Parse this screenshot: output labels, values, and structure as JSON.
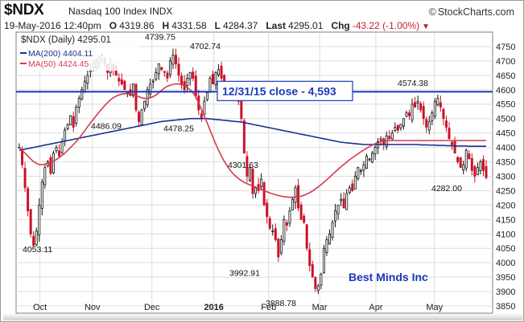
{
  "header": {
    "title": "$NDX",
    "subtitle": "Nasdaq 100 Index INDX",
    "brand": "StockCharts.com",
    "date": "19-May-2016 12:40pm",
    "open_label": "O",
    "open": "4319.86",
    "high_label": "H",
    "high": "4331.58",
    "low_label": "L",
    "low": "4284.37",
    "last_label": "Last",
    "last": "4295.01",
    "chg_label": "Chg",
    "chg": "-43.22 (-1.00%)"
  },
  "legend": {
    "main": "$NDX (Daily) 4295.01",
    "ma200": "MA(200) 4404.11",
    "ma50": "MA(50) 4424.45"
  },
  "colors": {
    "up": "#111111",
    "down": "#cc1126",
    "ma200": "#1a2f8f",
    "ma50": "#d6394c",
    "hline": "#1a39b8",
    "watermark": "#1a39b8",
    "grid": "#dcdcdc"
  },
  "chart_data": {
    "type": "candlestick",
    "title": "$NDX (Daily) 4295.01",
    "ylim": [
      3825,
      4800
    ],
    "yticks": [
      3850,
      3900,
      3950,
      4000,
      4050,
      4100,
      4150,
      4200,
      4250,
      4300,
      4350,
      4400,
      4450,
      4500,
      4550,
      4600,
      4650,
      4700,
      4750
    ],
    "x_labels": [
      {
        "label": "Oct",
        "x": 0.05
      },
      {
        "label": "Nov",
        "x": 0.16
      },
      {
        "label": "Dec",
        "x": 0.285
      },
      {
        "label": "2016",
        "x": 0.415
      },
      {
        "label": "Feb",
        "x": 0.53
      },
      {
        "label": "Mar",
        "x": 0.637
      },
      {
        "label": "Apr",
        "x": 0.755
      },
      {
        "label": "May",
        "x": 0.878
      }
    ],
    "reference_line": {
      "value": 4593,
      "label": "12/31/15 close - 4,593"
    },
    "annotations": [
      {
        "text": "4053.11",
        "value": 4053.11
      },
      {
        "text": "4486.09",
        "value": 4486.09
      },
      {
        "text": "4739.75",
        "value": 4739.75
      },
      {
        "text": "4478.25",
        "value": 4478.25
      },
      {
        "text": "4702.74",
        "value": 4702.74
      },
      {
        "text": "4301.63",
        "value": 4301.63
      },
      {
        "text": "3992.91",
        "value": 3992.91
      },
      {
        "text": "3888.78",
        "value": 3888.78
      },
      {
        "text": "4574.38",
        "value": 4574.38
      },
      {
        "text": "4282.00",
        "value": 4282.0
      }
    ],
    "closes": [
      4400,
      4340,
      4260,
      4180,
      4100,
      4060,
      4110,
      4200,
      4280,
      4330,
      4350,
      4310,
      4380,
      4400,
      4370,
      4420,
      4460,
      4480,
      4510,
      4470,
      4540,
      4570,
      4600,
      4630,
      4650,
      4670,
      4690,
      4700,
      4710,
      4720,
      4690,
      4660,
      4690,
      4670,
      4650,
      4630,
      4620,
      4600,
      4590,
      4580,
      4620,
      4530,
      4490,
      4530,
      4560,
      4600,
      4620,
      4630,
      4660,
      4690,
      4670,
      4660,
      4640,
      4700,
      4720,
      4690,
      4650,
      4620,
      4600,
      4640,
      4660,
      4640,
      4580,
      4530,
      4500,
      4560,
      4590,
      4640,
      4620,
      4660,
      4670,
      4640,
      4610,
      4590,
      4610,
      4600,
      4570,
      4560,
      4500,
      4380,
      4300,
      4330,
      4240,
      4260,
      4250,
      4290,
      4200,
      4160,
      4120,
      4110,
      4080,
      4020,
      4080,
      4150,
      4130,
      4180,
      4220,
      4260,
      4190,
      4150,
      4140,
      4050,
      3990,
      3950,
      3910,
      3920,
      3960,
      4050,
      4080,
      4100,
      4140,
      4180,
      4200,
      4220,
      4190,
      4240,
      4260,
      4250,
      4300,
      4330,
      4320,
      4340,
      4370,
      4360,
      4380,
      4400,
      4420,
      4430,
      4410,
      4440,
      4430,
      4450,
      4470,
      4460,
      4480,
      4500,
      4520,
      4510,
      4550,
      4540,
      4560,
      4530,
      4500,
      4470,
      4490,
      4520,
      4560,
      4570,
      4540,
      4500,
      4470,
      4430,
      4410,
      4380,
      4350,
      4330,
      4340,
      4390,
      4360,
      4320,
      4300,
      4330,
      4350,
      4320,
      4295
    ],
    "ma200": [
      4390,
      4392,
      4394,
      4396,
      4398,
      4400,
      4402,
      4404,
      4406,
      4408,
      4410,
      4412,
      4414,
      4416,
      4418,
      4420,
      4422,
      4424,
      4426,
      4428,
      4430,
      4432,
      4434,
      4436,
      4438,
      4440,
      4442,
      4444,
      4446,
      4448,
      4450,
      4452,
      4454,
      4456,
      4458,
      4460,
      4462,
      4464,
      4466,
      4468,
      4470,
      4472,
      4474,
      4476,
      4478,
      4480,
      4482,
      4484,
      4486,
      4488,
      4490,
      4491,
      4492,
      4493,
      4494,
      4495,
      4496,
      4497,
      4498,
      4499,
      4500,
      4500,
      4500,
      4500,
      4500,
      4500,
      4500,
      4499,
      4498,
      4497,
      4496,
      4495,
      4494,
      4493,
      4492,
      4491,
      4490,
      4489,
      4488,
      4486,
      4484,
      4482,
      4480,
      4478,
      4476,
      4474,
      4472,
      4470,
      4468,
      4466,
      4464,
      4462,
      4460,
      4458,
      4456,
      4454,
      4452,
      4450,
      4448,
      4446,
      4444,
      4442,
      4440,
      4438,
      4436,
      4434,
      4432,
      4430,
      4428,
      4426,
      4424,
      4422,
      4420,
      4418,
      4417,
      4416,
      4415,
      4414,
      4413,
      4412,
      4411,
      4410,
      4410,
      4410,
      4410,
      4410,
      4410,
      4410,
      4410,
      4410,
      4410,
      4410,
      4410,
      4410,
      4410,
      4410,
      4410,
      4410,
      4410,
      4410,
      4410,
      4409,
      4409,
      4409,
      4408,
      4408,
      4408,
      4407,
      4407,
      4407,
      4406,
      4406,
      4406,
      4405,
      4405,
      4405,
      4405,
      4405,
      4404,
      4404,
      4404,
      4404,
      4404,
      4404,
      4404
    ],
    "ma50": [
      4400,
      4390,
      4380,
      4370,
      4360,
      4350,
      4345,
      4340,
      4340,
      4342,
      4345,
      4348,
      4352,
      4358,
      4365,
      4372,
      4380,
      4390,
      4400,
      4410,
      4420,
      4432,
      4445,
      4458,
      4472,
      4485,
      4498,
      4510,
      4522,
      4534,
      4545,
      4555,
      4565,
      4572,
      4578,
      4582,
      4585,
      4586,
      4586,
      4585,
      4583,
      4580,
      4576,
      4572,
      4570,
      4570,
      4572,
      4576,
      4582,
      4590,
      4598,
      4606,
      4612,
      4616,
      4619,
      4620,
      4620,
      4618,
      4614,
      4608,
      4600,
      4590,
      4575,
      4555,
      4532,
      4508,
      4485,
      4460,
      4436,
      4412,
      4390,
      4370,
      4352,
      4336,
      4322,
      4310,
      4300,
      4292,
      4285,
      4279,
      4274,
      4270,
      4266,
      4262,
      4258,
      4254,
      4250,
      4246,
      4242,
      4239,
      4236,
      4233,
      4231,
      4229,
      4228,
      4227,
      4227,
      4228,
      4229,
      4231,
      4234,
      4238,
      4243,
      4249,
      4256,
      4263,
      4271,
      4279,
      4288,
      4297,
      4306,
      4315,
      4324,
      4333,
      4341,
      4349,
      4357,
      4364,
      4371,
      4378,
      4385,
      4391,
      4397,
      4403,
      4408,
      4413,
      4417,
      4420,
      4422,
      4423,
      4424,
      4424,
      4424,
      4424,
      4424,
      4424,
      4424,
      4424,
      4424,
      4424,
      4424,
      4424,
      4424,
      4424,
      4424,
      4424,
      4424,
      4424,
      4424,
      4424,
      4424,
      4424,
      4424,
      4424,
      4424,
      4424,
      4424,
      4424,
      4424,
      4424,
      4424,
      4424,
      4424,
      4424,
      4424
    ]
  },
  "watermark": "Best Minds Inc"
}
